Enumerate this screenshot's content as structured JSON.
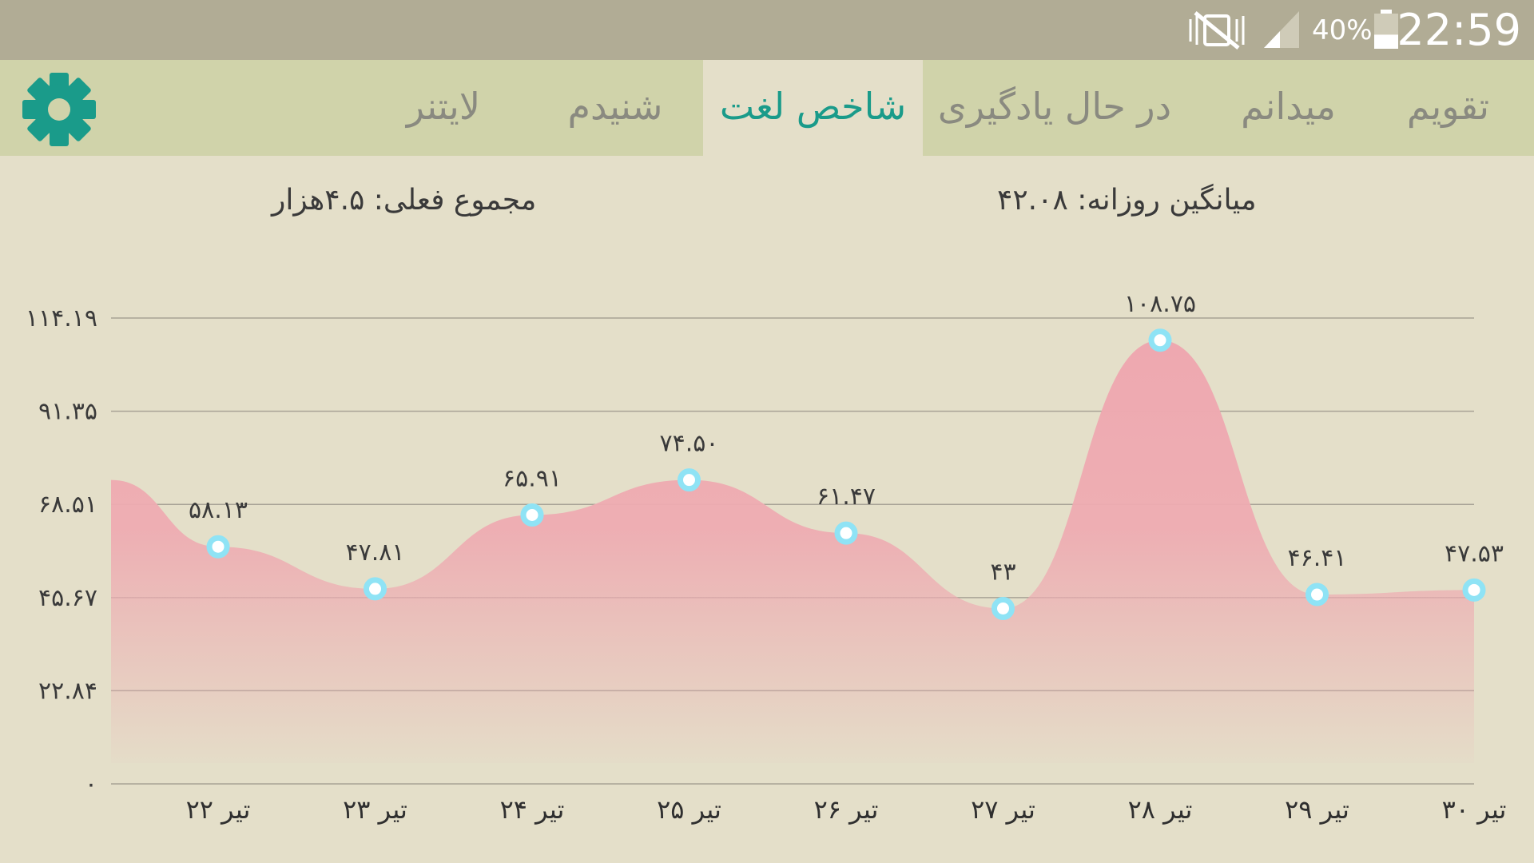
{
  "status_bar": {
    "time": "22:59",
    "battery_percent": "40%",
    "battery_level": 0.4,
    "icons": [
      "mute-vibrate-icon",
      "signal-icon",
      "battery-icon"
    ]
  },
  "tabs": [
    {
      "label": "تقویم",
      "active": false
    },
    {
      "label": "میدانم",
      "active": false
    },
    {
      "label": "در حال یادگیری",
      "active": false
    },
    {
      "label": "شاخص لغت",
      "active": true
    },
    {
      "label": "شنیدم",
      "active": false
    },
    {
      "label": "لایتنر",
      "active": false
    }
  ],
  "settings": {
    "icon": "gear-icon"
  },
  "summary": {
    "daily_average": "میانگین روزانه: ۴۲.۰۸",
    "current_total": "مجموع فعلی: ۴.۵هزار"
  },
  "colors": {
    "accent": "#1a9b8a",
    "area_fill": "#eea8b0",
    "point_stroke": "#8fe3f5",
    "tab_bar": "#d0d3aa",
    "background": "#e4dfc9",
    "status_bar": "#b1ac95"
  },
  "chart_data": {
    "type": "area",
    "curve": "smooth",
    "grid": true,
    "ylim": [
      0,
      114.19
    ],
    "y_ticks": [
      0,
      22.84,
      45.67,
      68.51,
      91.35,
      114.19
    ],
    "y_tick_labels": [
      "۰",
      "۲۲.۸۴",
      "۴۵.۶۷",
      "۶۸.۵۱",
      "۹۱.۳۵",
      "۱۱۴.۱۹"
    ],
    "start_value": 74.5,
    "categories": [
      "۲۲ تیر",
      "۲۳ تیر",
      "۲۴ تیر",
      "۲۵ تیر",
      "۲۶ تیر",
      "۲۷ تیر",
      "۲۸ تیر",
      "۲۹ تیر",
      "۳۰ تیر"
    ],
    "values": [
      58.13,
      47.81,
      65.91,
      74.5,
      61.47,
      43,
      108.75,
      46.41,
      47.53
    ],
    "value_labels": [
      "۵۸.۱۳",
      "۴۷.۸۱",
      "۶۵.۹۱",
      "۷۴.۵۰",
      "۶۱.۴۷",
      "۴۳",
      "۱۰۸.۷۵",
      "۴۶.۴۱",
      "۴۷.۵۳"
    ]
  }
}
